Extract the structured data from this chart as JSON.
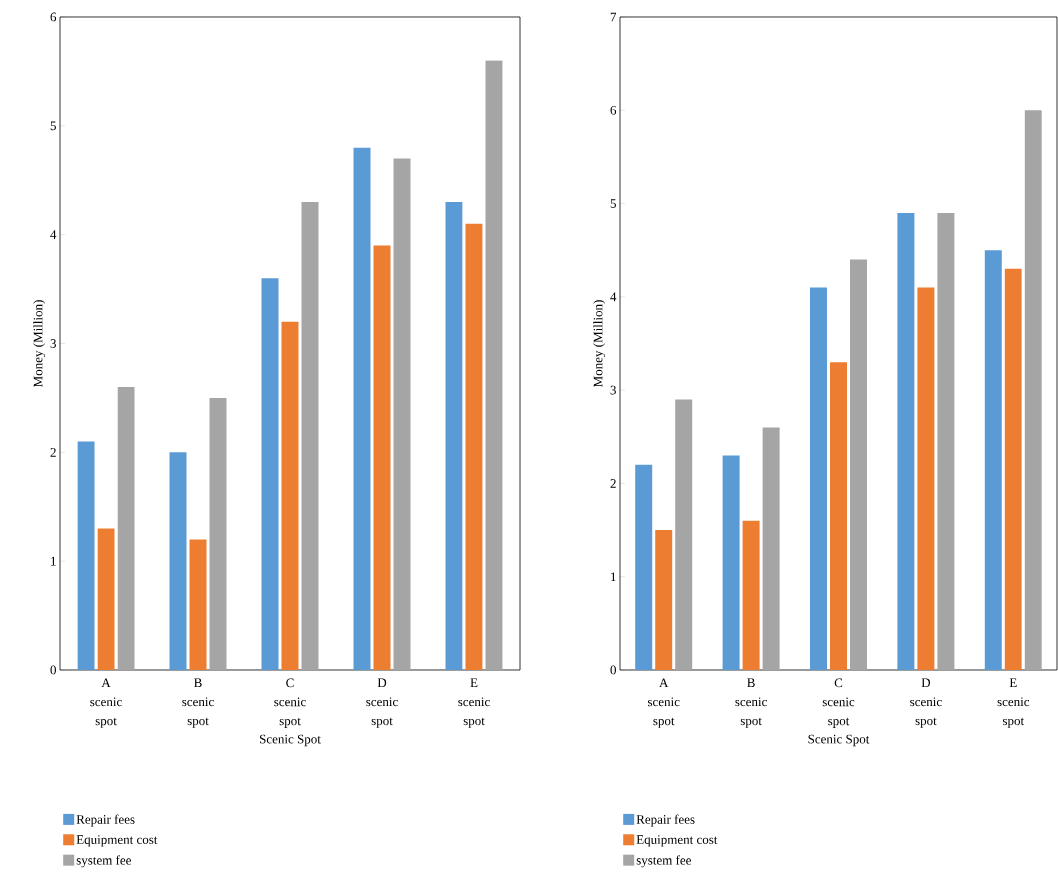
{
  "chart_data": [
    {
      "type": "bar",
      "xlabel": "Scenic Spot",
      "ylabel": "Money (Million)",
      "categories": [
        "A scenic spot",
        "B scenic spot",
        "C scenic spot",
        "D scenic spot",
        "E scenic spot"
      ],
      "ylim": [
        0,
        6
      ],
      "yticks": [
        0,
        1,
        2,
        3,
        4,
        5,
        6
      ],
      "legend": "bottom",
      "series": [
        {
          "name": "Repair fees",
          "color": "#5b9bd5",
          "values": [
            2.1,
            2.0,
            3.6,
            4.8,
            4.3
          ]
        },
        {
          "name": "Equipment cost",
          "color": "#ed7d31",
          "values": [
            1.3,
            1.2,
            3.2,
            3.9,
            4.1
          ]
        },
        {
          "name": "system fee",
          "color": "#a5a5a5",
          "values": [
            2.6,
            2.5,
            4.3,
            4.7,
            5.6
          ]
        }
      ]
    },
    {
      "type": "bar",
      "xlabel": "Scenic Spot",
      "ylabel": "Money (Million)",
      "categories": [
        "A scenic spot",
        "B scenic spot",
        "C scenic spot",
        "D scenic spot",
        "E scenic spot"
      ],
      "ylim": [
        0,
        7
      ],
      "yticks": [
        0,
        1,
        2,
        3,
        4,
        5,
        6,
        7
      ],
      "legend": "bottom",
      "series": [
        {
          "name": "Repair fees",
          "color": "#5b9bd5",
          "values": [
            2.2,
            2.3,
            4.1,
            4.9,
            4.5
          ]
        },
        {
          "name": "Equipment cost",
          "color": "#ed7d31",
          "values": [
            1.5,
            1.6,
            3.3,
            4.1,
            4.3
          ]
        },
        {
          "name": "system fee",
          "color": "#a5a5a5",
          "values": [
            2.9,
            2.6,
            4.4,
            4.9,
            6.0
          ]
        }
      ]
    }
  ]
}
